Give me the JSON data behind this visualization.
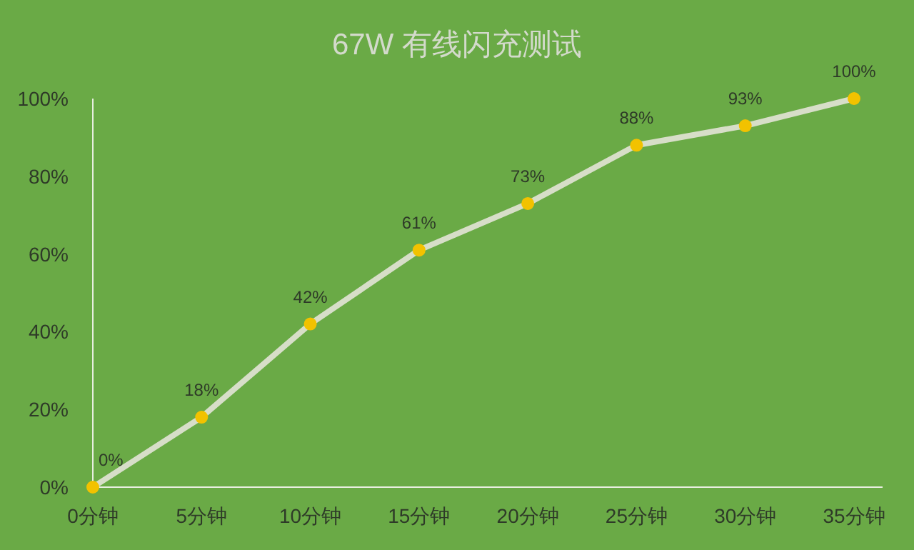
{
  "chart_data": {
    "type": "line",
    "title": "67W 有线闪充测试",
    "categories": [
      "0分钟",
      "5分钟",
      "10分钟",
      "15分钟",
      "20分钟",
      "25分钟",
      "30分钟",
      "35分钟"
    ],
    "series": [
      {
        "color": "#d7dec8",
        "colors": [
          "#f2c200",
          "#f2c200",
          "#f2c200",
          "#f2c200",
          "#f2c200",
          "#f2c200",
          "#f2c200",
          "#f2c200"
        ],
        "values": [
          0,
          18,
          42,
          61,
          73,
          88,
          93,
          100
        ],
        "value_labels": [
          "0%",
          "18%",
          "42%",
          "61%",
          "73%",
          "88%",
          "93%",
          "100%"
        ]
      }
    ],
    "ylim": [
      0,
      100
    ],
    "yticks": [
      {
        "value": 0,
        "label": "0%"
      },
      {
        "value": 20,
        "label": "20%"
      },
      {
        "value": 40,
        "label": "40%"
      },
      {
        "value": 60,
        "label": "60%"
      },
      {
        "value": 80,
        "label": "80%"
      },
      {
        "value": 100,
        "label": "100%"
      }
    ],
    "grid": false,
    "marker": "circle",
    "line_style": "solid"
  }
}
